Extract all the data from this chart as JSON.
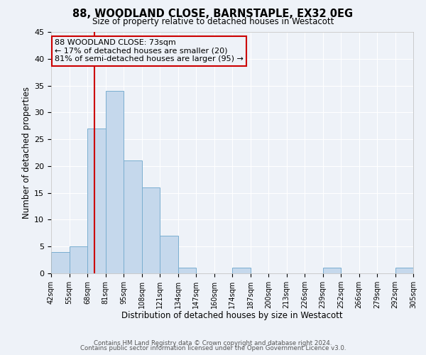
{
  "title": "88, WOODLAND CLOSE, BARNSTAPLE, EX32 0EG",
  "subtitle": "Size of property relative to detached houses in Westacott",
  "xlabel": "Distribution of detached houses by size in Westacott",
  "ylabel": "Number of detached properties",
  "bin_labels": [
    "42sqm",
    "55sqm",
    "68sqm",
    "81sqm",
    "95sqm",
    "108sqm",
    "121sqm",
    "134sqm",
    "147sqm",
    "160sqm",
    "174sqm",
    "187sqm",
    "200sqm",
    "213sqm",
    "226sqm",
    "239sqm",
    "252sqm",
    "266sqm",
    "279sqm",
    "292sqm",
    "305sqm"
  ],
  "bar_values": [
    4,
    5,
    27,
    34,
    21,
    16,
    7,
    1,
    0,
    0,
    1,
    0,
    0,
    0,
    0,
    1,
    0,
    0,
    0,
    1
  ],
  "bar_color": "#c5d8ec",
  "bar_edge_color": "#7aaed0",
  "ylim": [
    0,
    45
  ],
  "yticks": [
    0,
    5,
    10,
    15,
    20,
    25,
    30,
    35,
    40,
    45
  ],
  "property_label": "88 WOODLAND CLOSE: 73sqm",
  "annotation_line1": "← 17% of detached houses are smaller (20)",
  "annotation_line2": "81% of semi-detached houses are larger (95) →",
  "annotation_box_color": "#cc0000",
  "vline_color": "#cc0000",
  "background_color": "#eef2f8",
  "grid_color": "#ffffff",
  "footer_line1": "Contains HM Land Registry data © Crown copyright and database right 2024.",
  "footer_line2": "Contains public sector information licensed under the Open Government Licence v3.0."
}
